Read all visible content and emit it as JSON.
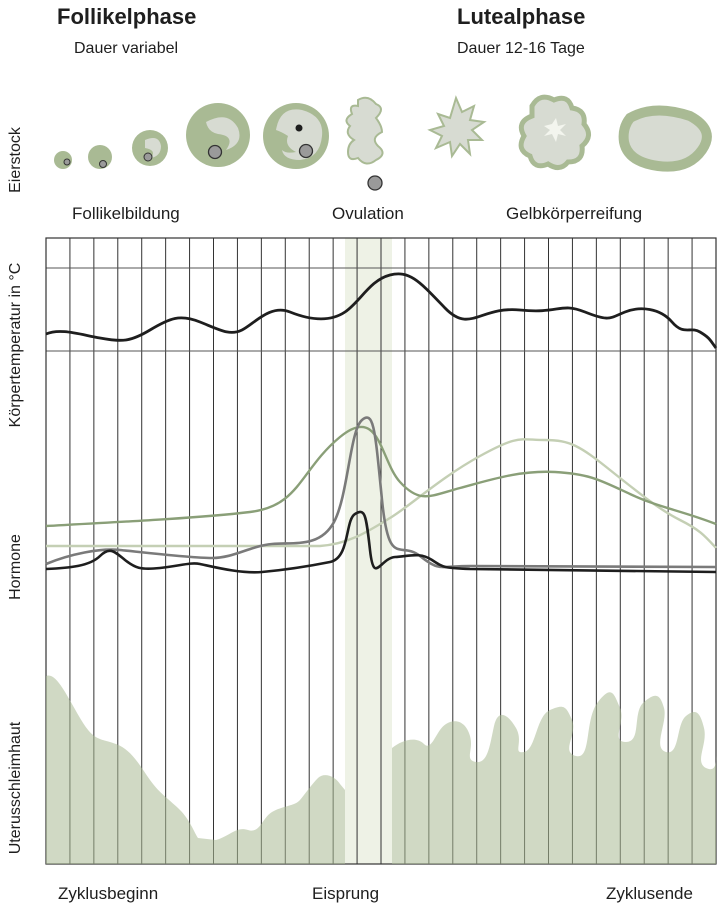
{
  "phases": [
    {
      "title": "Follikelphase",
      "subtitle": "Dauer variabel"
    },
    {
      "title": "Lutealphase",
      "subtitle": "Dauer 12-16 Tage"
    }
  ],
  "ovary_stages": [
    "Follikelbildung",
    "Ovulation",
    "Gelbkörperreifung"
  ],
  "row_labels": {
    "ovary": "Eierstock",
    "temperature": "Körpertemperatur in °C",
    "hormones": "Hormone",
    "endometrium": "Uterusschleimhaut"
  },
  "bottom_labels": [
    "Zyklusbeginn",
    "Eisprung",
    "Zyklusende"
  ],
  "colors": {
    "sage": "#a9ba94",
    "sage_light": "#d4dcc8",
    "ovulation_band": "#eef2e6",
    "line_dark": "#1e1e1e",
    "line_grey": "#7a7a7a",
    "line_green": "#8a9f78",
    "line_pale": "#c4cfb4"
  }
}
